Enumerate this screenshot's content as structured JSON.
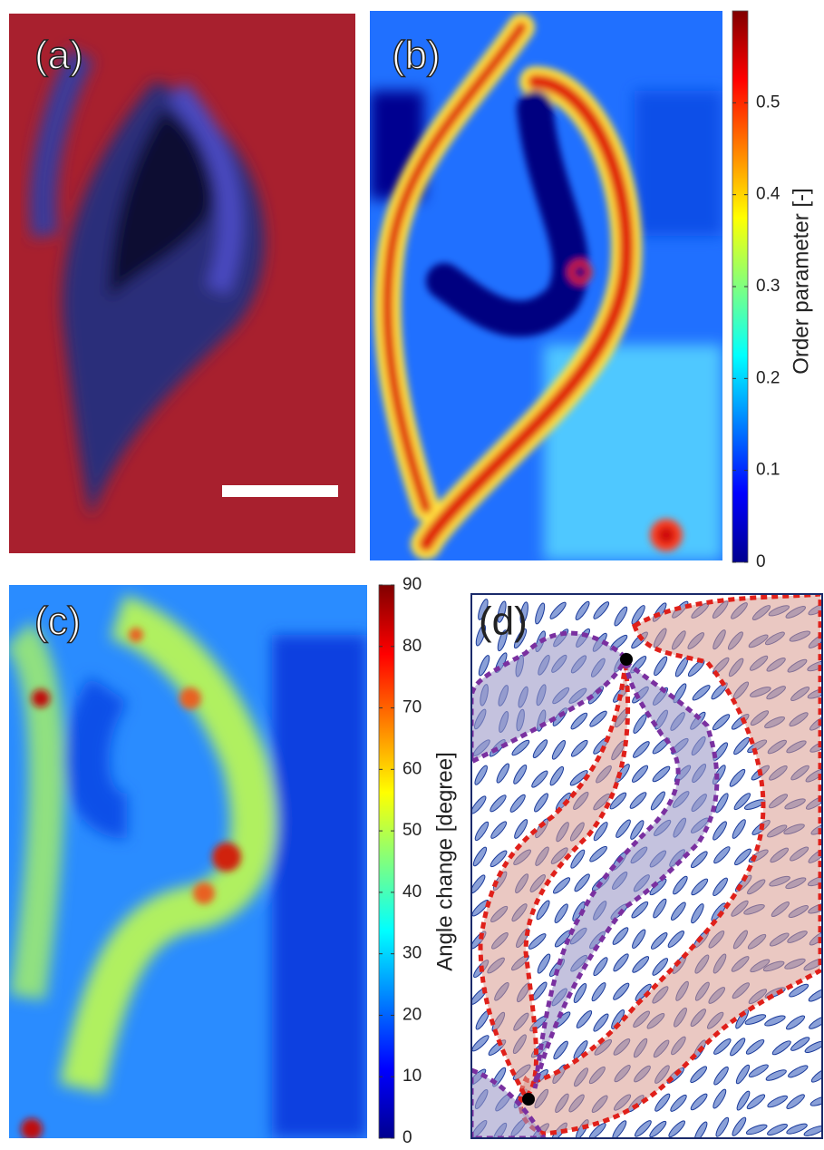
{
  "figure": {
    "panels": [
      {
        "label": "(a)"
      },
      {
        "label": "(b)"
      },
      {
        "label": "(c)"
      },
      {
        "label": "(d)"
      }
    ],
    "colorbars": [
      {
        "label": "Order parameter [-]",
        "lim": [
          0,
          0.6
        ],
        "ticks": [
          0,
          0.1,
          0.2,
          0.3,
          0.4,
          0.5
        ]
      },
      {
        "label": "Angle change [degree]",
        "lim": [
          0,
          90
        ],
        "ticks": [
          0,
          10,
          20,
          30,
          40,
          50,
          60,
          70,
          80,
          90
        ]
      }
    ]
  }
}
